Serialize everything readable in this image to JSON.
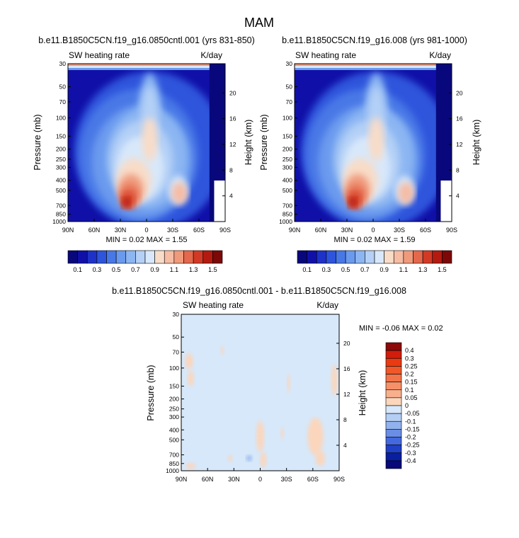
{
  "figure_title": "MAM",
  "chart_data": [
    {
      "type": "heatmap",
      "title": "b.e11.B1850C5CN.f19_g16.0850cntl.001 (yrs 831-850)",
      "left_string": "SW heating rate",
      "right_string": "K/day",
      "ylabel": "Pressure (mb)",
      "ylabel_right": "Height (km)",
      "x_ticks": [
        "90N",
        "60N",
        "30N",
        "0",
        "30S",
        "60S",
        "90S"
      ],
      "y_ticks": [
        30,
        50,
        70,
        100,
        150,
        200,
        250,
        300,
        400,
        500,
        700,
        850,
        1000
      ],
      "y_right_ticks": [
        20,
        16,
        12,
        8,
        4
      ],
      "stats": "MIN =  0.02  MAX =  1.55",
      "min": 0.02,
      "max": 1.55,
      "colorbar_levels": [
        0.1,
        0.2,
        0.3,
        0.4,
        0.5,
        0.6,
        0.7,
        0.8,
        0.9,
        1.0,
        1.1,
        1.2,
        1.3,
        1.4,
        1.5
      ],
      "colorbar_labels": [
        "0.1",
        "0.3",
        "0.5",
        "0.7",
        "0.9",
        "1.1",
        "1.3",
        "1.5"
      ]
    },
    {
      "type": "heatmap",
      "title": "b.e11.B1850C5CN.f19_g16.008 (yrs 981-1000)",
      "left_string": "SW heating rate",
      "right_string": "K/day",
      "ylabel": "Pressure (mb)",
      "ylabel_right": "Height (km)",
      "x_ticks": [
        "90N",
        "60N",
        "30N",
        "0",
        "30S",
        "60S",
        "90S"
      ],
      "y_ticks": [
        30,
        50,
        70,
        100,
        150,
        200,
        250,
        300,
        400,
        500,
        700,
        850,
        1000
      ],
      "y_right_ticks": [
        20,
        16,
        12,
        8,
        4
      ],
      "stats": "MIN =  0.02  MAX =  1.59",
      "min": 0.02,
      "max": 1.59,
      "colorbar_levels": [
        0.1,
        0.2,
        0.3,
        0.4,
        0.5,
        0.6,
        0.7,
        0.8,
        0.9,
        1.0,
        1.1,
        1.2,
        1.3,
        1.4,
        1.5
      ],
      "colorbar_labels": [
        "0.1",
        "0.3",
        "0.5",
        "0.7",
        "0.9",
        "1.1",
        "1.3",
        "1.5"
      ]
    },
    {
      "type": "heatmap",
      "title": "b.e11.B1850C5CN.f19_g16.0850cntl.001 - b.e11.B1850C5CN.f19_g16.008",
      "left_string": "SW heating rate",
      "right_string": "K/day",
      "ylabel": "Pressure (mb)",
      "ylabel_right": "Height (km)",
      "x_ticks": [
        "90N",
        "60N",
        "30N",
        "0",
        "30S",
        "60S",
        "90S"
      ],
      "y_ticks": [
        30,
        50,
        70,
        100,
        150,
        200,
        250,
        300,
        400,
        500,
        700,
        850,
        1000
      ],
      "y_right_ticks": [
        20,
        16,
        12,
        8,
        4
      ],
      "stats": "MIN = -0.06  MAX =  0.02",
      "min": -0.06,
      "max": 0.02,
      "colorbar_labels": [
        "0.4",
        "0.3",
        "0.25",
        "0.2",
        "0.15",
        "0.1",
        "0.05",
        "0",
        "-0.05",
        "-0.1",
        "-0.15",
        "-0.2",
        "-0.25",
        "-0.3",
        "-0.4"
      ]
    }
  ],
  "palettes": {
    "sequential": [
      "#08087c",
      "#1010a8",
      "#1e32c8",
      "#2e54dc",
      "#4878e6",
      "#6a9aee",
      "#8cb6f2",
      "#b4d0f6",
      "#d8e8fa",
      "#f8dcc8",
      "#f6bca4",
      "#f09a7c",
      "#e4684c",
      "#d23a26",
      "#b41a10",
      "#7c0808"
    ],
    "diverging": [
      "#8c0a0a",
      "#d21c0c",
      "#ea3a12",
      "#f0582a",
      "#f27448",
      "#f69068",
      "#f8b08c",
      "#fbd6bc",
      "#d6e8fa",
      "#b4cef4",
      "#92b2ee",
      "#6a8ee6",
      "#4468de",
      "#2040c6",
      "#0a1ea0",
      "#08087a"
    ]
  }
}
